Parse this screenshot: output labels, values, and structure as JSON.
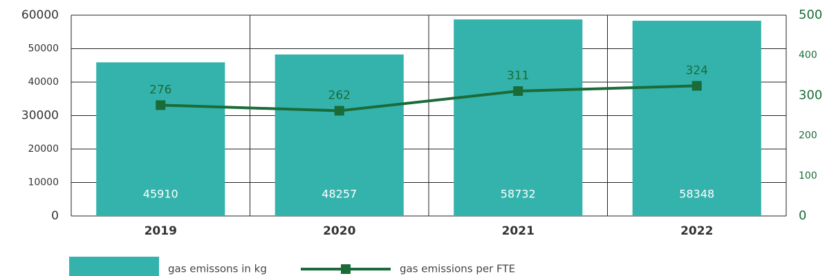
{
  "chart_data": {
    "type": "bar",
    "categories": [
      "2019",
      "2020",
      "2021",
      "2022"
    ],
    "series": [
      {
        "name": "gas emissons in kg",
        "color": "#34b3ac",
        "type": "bar",
        "values": [
          45910,
          48257,
          58732,
          58348
        ]
      },
      {
        "name": "gas emissions per FTE",
        "color": "#1a6b38",
        "type": "line",
        "axis": "y2",
        "values": [
          276,
          262,
          311,
          324
        ]
      }
    ],
    "ylim": [
      0,
      60000
    ],
    "yticks": [
      0,
      10000,
      20000,
      30000,
      40000,
      50000,
      60000
    ],
    "y2lim": [
      0,
      500
    ],
    "y2ticks": [
      0,
      100,
      200,
      300,
      400,
      500
    ],
    "grid": true,
    "legend": "bottom"
  }
}
